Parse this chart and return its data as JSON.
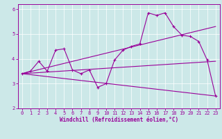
{
  "xlabel": "Windchill (Refroidissement éolien,°C)",
  "background_color": "#cce8e8",
  "line_color": "#990099",
  "grid_color": "#ffffff",
  "xlim": [
    -0.5,
    23.5
  ],
  "ylim": [
    2.0,
    6.2
  ],
  "yticks": [
    2,
    3,
    4,
    5,
    6
  ],
  "xticks": [
    0,
    1,
    2,
    3,
    4,
    5,
    6,
    7,
    8,
    9,
    10,
    11,
    12,
    13,
    14,
    15,
    16,
    17,
    18,
    19,
    20,
    21,
    22,
    23
  ],
  "series_main": {
    "x": [
      0,
      1,
      2,
      3,
      4,
      5,
      6,
      7,
      8,
      9,
      10,
      11,
      12,
      13,
      14,
      15,
      16,
      17,
      18,
      19,
      20,
      21,
      22,
      23
    ],
    "y": [
      3.4,
      3.5,
      3.9,
      3.5,
      4.35,
      4.4,
      3.55,
      3.4,
      3.55,
      2.85,
      3.0,
      3.95,
      4.35,
      4.5,
      4.6,
      5.85,
      5.75,
      5.85,
      5.3,
      4.95,
      4.9,
      4.7,
      3.95,
      2.5
    ]
  },
  "trend_lines": [
    {
      "x": [
        0,
        23
      ],
      "y": [
        3.4,
        2.5
      ]
    },
    {
      "x": [
        0,
        23
      ],
      "y": [
        3.4,
        3.9
      ]
    },
    {
      "x": [
        0,
        23
      ],
      "y": [
        3.4,
        5.3
      ]
    }
  ]
}
